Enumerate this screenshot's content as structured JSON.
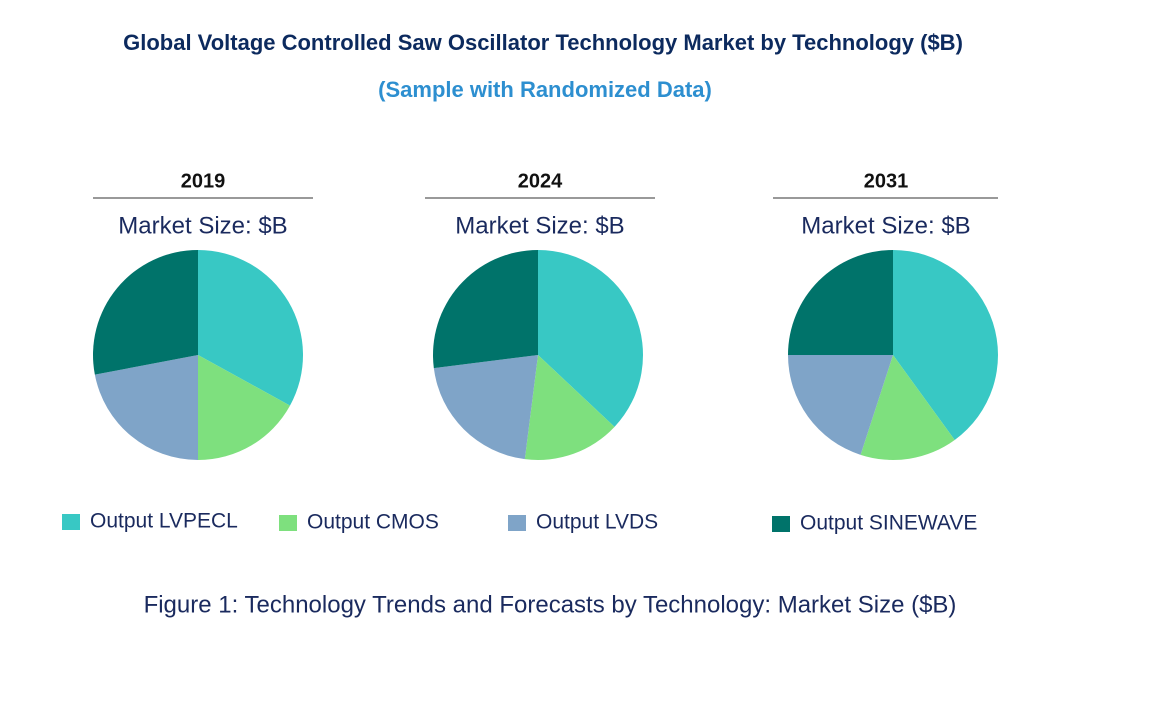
{
  "title": "Global Voltage Controlled Saw Oscillator Technology Market by Technology ($B)",
  "subtitle": "(Sample with Randomized Data)",
  "caption": "Figure 1: Technology Trends and Forecasts by Technology: Market Size ($B)",
  "legend": {
    "names": [
      "Output LVPECL",
      "Output CMOS",
      "Output LVDS",
      "Output SINEWAVE"
    ],
    "colors": [
      "#38c8c4",
      "#7ee07e",
      "#7fa4c8",
      "#00736a"
    ]
  },
  "chart_data": [
    {
      "type": "pie",
      "title": "2019",
      "subtitle": "Market Size: $B",
      "values": [
        33,
        17,
        22,
        28
      ]
    },
    {
      "type": "pie",
      "title": "2024",
      "subtitle": "Market Size: $B",
      "values": [
        37,
        15,
        21,
        27
      ]
    },
    {
      "type": "pie",
      "title": "2031",
      "subtitle": "Market Size: $B",
      "values": [
        40,
        15,
        20,
        25
      ]
    }
  ]
}
